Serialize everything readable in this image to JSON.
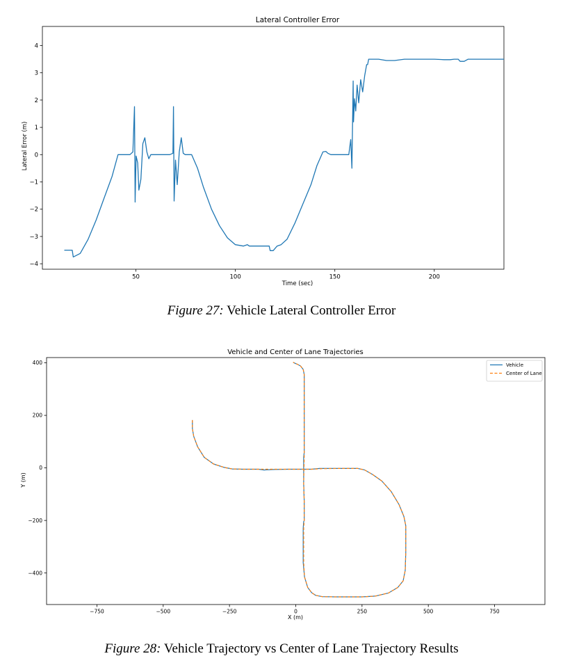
{
  "figures": [
    {
      "caption_label": "Figure 27:",
      "caption_text": "Vehicle Lateral Controller Error"
    },
    {
      "caption_label": "Figure 28:",
      "caption_text": "Vehicle Trajectory vs Center of Lane Trajectory Results"
    }
  ],
  "chart_data": [
    {
      "type": "line",
      "title": "Lateral Controller Error",
      "xlabel": "Time (sec)",
      "ylabel": "Lateral Error (m)",
      "xlim": [
        3,
        235
      ],
      "ylim": [
        -4.2,
        4.7
      ],
      "xticks": [
        50,
        100,
        150,
        200
      ],
      "yticks": [
        -4,
        -3,
        -2,
        -1,
        0,
        1,
        2,
        3,
        4
      ],
      "grid": false,
      "legend": "none",
      "color": "#1f77b4",
      "series": [
        {
          "x": [
            14,
            18,
            18.5,
            22,
            26,
            30,
            34,
            38,
            41,
            47,
            48.5,
            49.3,
            49.6,
            50.1,
            50.9,
            51.5,
            52.5,
            53.5,
            54.5,
            55.5,
            56.5,
            57.5,
            59,
            62,
            67,
            68.6,
            68.9,
            69.2,
            69.9,
            70.8,
            71.8,
            72.8,
            73.8,
            74.8,
            76,
            78,
            81,
            84,
            88,
            92,
            96,
            100,
            104,
            106,
            107,
            108,
            117,
            117.5,
            119,
            121,
            123,
            126,
            130,
            134,
            138,
            141,
            144,
            145.5,
            146.5,
            148,
            157,
            158,
            158.6,
            159.2,
            159.4,
            159.9,
            160.5,
            161.2,
            162,
            163,
            164,
            165,
            166,
            166.5,
            167,
            169,
            170,
            172,
            176,
            180,
            185,
            190,
            195,
            200,
            205,
            208,
            210,
            212,
            213,
            215,
            217,
            225,
            235
          ],
          "y": [
            -3.5,
            -3.5,
            -3.75,
            -3.62,
            -3.1,
            -2.4,
            -1.6,
            -0.8,
            0.0,
            0.0,
            0.1,
            1.76,
            -1.74,
            -0.05,
            -0.3,
            -1.3,
            -0.9,
            0.4,
            0.62,
            0.1,
            -0.15,
            0.0,
            0.0,
            0.0,
            0.0,
            0.05,
            1.76,
            -1.7,
            -0.2,
            -1.1,
            0.1,
            0.62,
            0.05,
            0.0,
            0.0,
            0.0,
            -0.5,
            -1.2,
            -2.0,
            -2.6,
            -3.05,
            -3.3,
            -3.35,
            -3.3,
            -3.35,
            -3.35,
            -3.35,
            -3.52,
            -3.52,
            -3.35,
            -3.3,
            -3.1,
            -2.5,
            -1.8,
            -1.1,
            -0.4,
            0.1,
            0.12,
            0.05,
            0.0,
            0.0,
            0.55,
            -0.5,
            2.7,
            1.2,
            2.05,
            1.6,
            2.55,
            1.9,
            2.75,
            2.3,
            2.9,
            3.3,
            3.3,
            3.5,
            3.5,
            3.5,
            3.5,
            3.45,
            3.45,
            3.5,
            3.5,
            3.5,
            3.5,
            3.48,
            3.48,
            3.5,
            3.5,
            3.42,
            3.42,
            3.5,
            3.5,
            3.5
          ]
        }
      ]
    },
    {
      "type": "line",
      "title": "Vehicle and Center of Lane Trajectories",
      "xlabel": "X (m)",
      "ylabel": "Y (m)",
      "xlim": [
        -940,
        940
      ],
      "ylim": [
        -520,
        420
      ],
      "xticks": [
        -750,
        -500,
        -250,
        0,
        250,
        500,
        750
      ],
      "yticks": [
        -400,
        -200,
        0,
        200,
        400
      ],
      "grid": false,
      "legend": "top-right",
      "series": [
        {
          "name": "Vehicle",
          "color": "#1f77b4",
          "style": "solid",
          "x": [
            -390,
            -390,
            -385,
            -370,
            -345,
            -310,
            -270,
            -240,
            -200,
            -140,
            -120,
            -80,
            -30,
            20,
            60,
            90,
            120,
            160,
            200,
            235,
            260,
            290,
            325,
            360,
            390,
            408,
            415,
            415,
            413,
            405,
            385,
            350,
            300,
            250,
            200,
            150,
            100,
            75,
            60,
            45,
            33,
            28,
            28,
            30,
            32,
            32,
            30,
            30,
            32,
            32,
            28,
            18,
            5,
            -2,
            -10
          ],
          "y": [
            182,
            150,
            120,
            80,
            40,
            15,
            2,
            -4,
            -5,
            -5,
            -8,
            -6,
            -5,
            -5,
            -5,
            -2,
            -2,
            -2,
            -2,
            -2,
            -8,
            -25,
            -50,
            -90,
            -140,
            -185,
            -220,
            -320,
            -390,
            -430,
            -455,
            -476,
            -488,
            -491,
            -491,
            -491,
            -490,
            -485,
            -475,
            -455,
            -415,
            -360,
            -230,
            -205,
            -200,
            -130,
            -60,
            40,
            60,
            355,
            375,
            388,
            395,
            398,
            402
          ]
        },
        {
          "name": "Center of Lane",
          "color": "#ff7f0e",
          "style": "dashed",
          "x": [
            -390,
            -390,
            -385,
            -370,
            -345,
            -310,
            -270,
            -240,
            -200,
            -140,
            -80,
            -30,
            20,
            60,
            100,
            160,
            200,
            235,
            260,
            290,
            325,
            360,
            390,
            408,
            415,
            415,
            413,
            405,
            385,
            350,
            300,
            250,
            200,
            150,
            100,
            75,
            60,
            45,
            33,
            30,
            30,
            32,
            32,
            30,
            32,
            32,
            28,
            18,
            5,
            -2,
            -10
          ],
          "y": [
            182,
            150,
            120,
            80,
            40,
            15,
            2,
            -4,
            -5,
            -5,
            -5,
            -5,
            -5,
            -5,
            -3,
            -2,
            -2,
            -2,
            -8,
            -25,
            -50,
            -90,
            -140,
            -185,
            -220,
            -320,
            -390,
            -430,
            -455,
            -476,
            -488,
            -491,
            -491,
            -491,
            -490,
            -485,
            -475,
            -455,
            -415,
            -360,
            -230,
            -200,
            -130,
            -60,
            40,
            355,
            375,
            388,
            395,
            398,
            402
          ]
        }
      ]
    }
  ]
}
